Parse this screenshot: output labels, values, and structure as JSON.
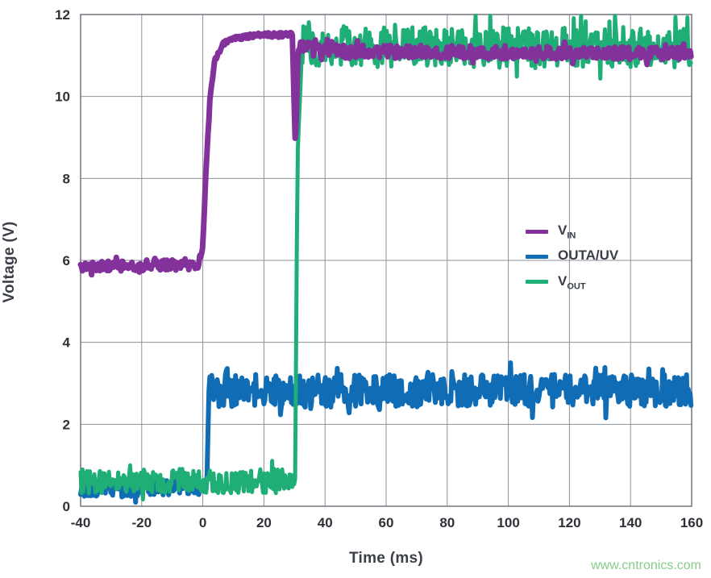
{
  "watermark": {
    "text": "www.cntronics.com"
  },
  "chart_data": {
    "type": "line",
    "title": "",
    "xlabel": "Time (ms)",
    "ylabel": "Voltage (V)",
    "xlim": [
      -40,
      160
    ],
    "ylim": [
      0,
      12
    ],
    "xticks": [
      -40,
      -20,
      0,
      20,
      40,
      60,
      80,
      100,
      120,
      140,
      160
    ],
    "yticks": [
      0,
      2,
      4,
      6,
      8,
      10,
      12
    ],
    "grid": true,
    "legend_position": "middle-right",
    "draw_order": [
      1,
      2,
      0
    ],
    "series": [
      {
        "name": "VIN",
        "legend": {
          "main": "V",
          "sub": "IN"
        },
        "color": "#84329B",
        "width": 7,
        "points": [
          [
            -40,
            5.85
          ],
          [
            -1.5,
            5.9
          ],
          [
            0,
            6.3
          ],
          [
            1,
            8.2
          ],
          [
            2.5,
            10.1
          ],
          [
            4,
            10.9
          ],
          [
            7,
            11.3
          ],
          [
            12,
            11.45
          ],
          [
            20,
            11.5
          ],
          [
            29.3,
            11.5
          ],
          [
            30.3,
            8.7
          ],
          [
            31.2,
            11.2
          ],
          [
            40,
            11.1
          ],
          [
            160,
            11.05
          ]
        ],
        "noise": [
          [
            -40,
            -1.5,
            0.13
          ],
          [
            -1.5,
            29.3,
            0.06
          ],
          [
            29.3,
            31.2,
            0.03
          ],
          [
            31.2,
            160,
            0.16
          ]
        ]
      },
      {
        "name": "OUTA/UV",
        "legend": {
          "main": "OUTA/UV",
          "sub": ""
        },
        "color": "#0F6CB5",
        "width": 6,
        "points": [
          [
            -40,
            0.45
          ],
          [
            1.3,
            0.45
          ],
          [
            2,
            2.82
          ],
          [
            160,
            2.82
          ]
        ],
        "noise": [
          [
            -40,
            1.3,
            0.22
          ],
          [
            2,
            160,
            0.4
          ]
        ]
      },
      {
        "name": "VOUT",
        "legend": {
          "main": "V",
          "sub": "OUT"
        },
        "color": "#1FAF76",
        "width": 5,
        "points": [
          [
            -40,
            0.62
          ],
          [
            30.2,
            0.62
          ],
          [
            31,
            8.6
          ],
          [
            32.5,
            11.25
          ],
          [
            160,
            11.15
          ]
        ],
        "noise": [
          [
            -40,
            30.2,
            0.3
          ],
          [
            30.2,
            32.5,
            0.06
          ],
          [
            32.5,
            160,
            0.5
          ]
        ]
      }
    ]
  }
}
